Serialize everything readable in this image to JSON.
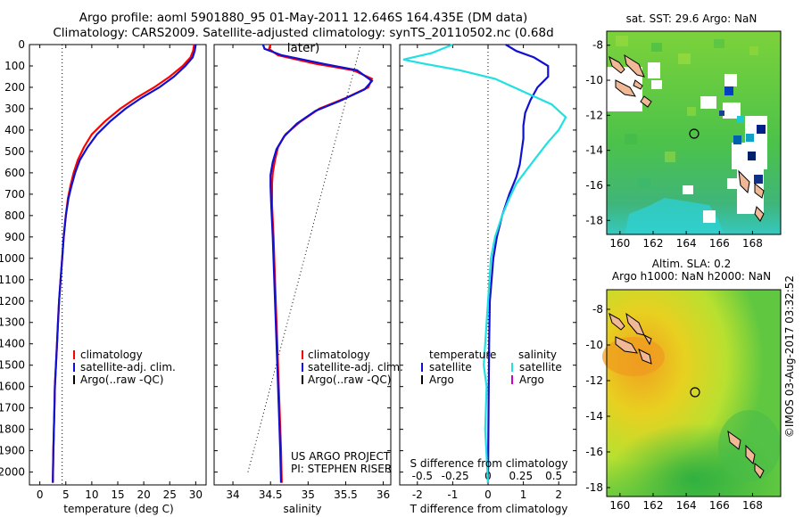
{
  "header": {
    "title_line1": "Argo profile: aoml 5901880_95 01-May-2011 12.646S 164.435E (DM data)",
    "title_line2": "Climatology: CARS2009. Satellite-adjusted climatology: synTS_20110502.nc (0.68d later)"
  },
  "colors": {
    "climatology": "#ff0000",
    "satellite": "#1010d0",
    "satellite_salinity": "#20e0e0",
    "argo": "#000000",
    "argo_salinity": "#cc00cc"
  },
  "project": {
    "line1": "US ARGO PROJECT",
    "line2": "PI: STEPHEN RISER"
  },
  "timestamp": "©IMOS 03-Aug-2017 03:32:52",
  "chart_data": [
    {
      "type": "line",
      "xlabel": "temperature (deg C)",
      "ylabel": "",
      "xlim": [
        -2,
        32
      ],
      "ylim": [
        2060,
        0
      ],
      "xticks": [
        0,
        5,
        10,
        15,
        20,
        25,
        30
      ],
      "yticks": [
        0,
        100,
        200,
        300,
        400,
        500,
        600,
        700,
        800,
        900,
        1000,
        1100,
        1200,
        1300,
        1400,
        1500,
        1600,
        1700,
        1800,
        1900,
        2000
      ],
      "reference_x": 4.3,
      "legend": [
        "climatology",
        "satellite-adj. clim.",
        "Argo(..raw -QC)"
      ],
      "series": [
        {
          "name": "climatology",
          "points": [
            [
              29.7,
              0
            ],
            [
              29.5,
              30
            ],
            [
              29.0,
              60
            ],
            [
              27.5,
              100
            ],
            [
              25.0,
              150
            ],
            [
              22.0,
              200
            ],
            [
              18.5,
              250
            ],
            [
              15.5,
              300
            ],
            [
              12.5,
              360
            ],
            [
              10.0,
              420
            ],
            [
              8.5,
              480
            ],
            [
              7.3,
              540
            ],
            [
              6.5,
              600
            ],
            [
              5.9,
              660
            ],
            [
              5.4,
              720
            ],
            [
              5.0,
              800
            ],
            [
              4.6,
              900
            ],
            [
              4.3,
              1000
            ],
            [
              4.0,
              1100
            ],
            [
              3.7,
              1200
            ],
            [
              3.5,
              1300
            ],
            [
              3.3,
              1400
            ],
            [
              3.1,
              1500
            ],
            [
              2.9,
              1600
            ],
            [
              2.8,
              1700
            ],
            [
              2.7,
              1800
            ],
            [
              2.6,
              1900
            ],
            [
              2.5,
              2050
            ]
          ]
        },
        {
          "name": "satellite-adj. clim.",
          "points": [
            [
              30.0,
              0
            ],
            [
              29.8,
              30
            ],
            [
              29.4,
              60
            ],
            [
              28.0,
              100
            ],
            [
              25.8,
              150
            ],
            [
              23.0,
              200
            ],
            [
              19.5,
              250
            ],
            [
              16.5,
              300
            ],
            [
              13.5,
              360
            ],
            [
              11.0,
              420
            ],
            [
              9.2,
              480
            ],
            [
              7.7,
              540
            ],
            [
              6.8,
              600
            ],
            [
              6.1,
              660
            ],
            [
              5.5,
              720
            ],
            [
              5.0,
              800
            ],
            [
              4.6,
              900
            ],
            [
              4.3,
              1000
            ],
            [
              4.0,
              1100
            ],
            [
              3.7,
              1200
            ],
            [
              3.5,
              1300
            ],
            [
              3.3,
              1400
            ],
            [
              3.1,
              1500
            ],
            [
              2.9,
              1600
            ],
            [
              2.8,
              1700
            ],
            [
              2.7,
              1800
            ],
            [
              2.6,
              1900
            ],
            [
              2.5,
              2050
            ]
          ]
        }
      ]
    },
    {
      "type": "line",
      "xlabel": "salinity",
      "xlim": [
        33.75,
        36.1
      ],
      "ylim": [
        2060,
        0
      ],
      "xticks": [
        34,
        34.5,
        35,
        35.5,
        36
      ],
      "legend": [
        "climatology",
        "satellite-adj. clim.",
        "Argo(..raw -QC)"
      ],
      "reference_line": [
        [
          34.2,
          2000
        ],
        [
          35.7,
          0
        ]
      ],
      "series": [
        {
          "name": "climatology",
          "points": [
            [
              34.5,
              0
            ],
            [
              34.48,
              20
            ],
            [
              34.6,
              50
            ],
            [
              35.1,
              90
            ],
            [
              35.6,
              120
            ],
            [
              35.85,
              160
            ],
            [
              35.8,
              200
            ],
            [
              35.5,
              250
            ],
            [
              35.15,
              300
            ],
            [
              34.9,
              360
            ],
            [
              34.7,
              420
            ],
            [
              34.6,
              480
            ],
            [
              34.56,
              540
            ],
            [
              34.53,
              600
            ],
            [
              34.52,
              650
            ],
            [
              34.52,
              750
            ],
            [
              34.54,
              900
            ],
            [
              34.56,
              1100
            ],
            [
              34.58,
              1300
            ],
            [
              34.6,
              1500
            ],
            [
              34.62,
              1700
            ],
            [
              34.64,
              1900
            ],
            [
              34.65,
              2050
            ]
          ]
        },
        {
          "name": "satellite-adj. clim.",
          "points": [
            [
              34.4,
              0
            ],
            [
              34.42,
              20
            ],
            [
              34.65,
              50
            ],
            [
              35.2,
              90
            ],
            [
              35.65,
              120
            ],
            [
              35.85,
              170
            ],
            [
              35.75,
              210
            ],
            [
              35.45,
              260
            ],
            [
              35.1,
              310
            ],
            [
              34.85,
              370
            ],
            [
              34.68,
              430
            ],
            [
              34.58,
              490
            ],
            [
              34.53,
              550
            ],
            [
              34.5,
              610
            ],
            [
              34.5,
              660
            ],
            [
              34.51,
              750
            ],
            [
              34.53,
              900
            ],
            [
              34.55,
              1100
            ],
            [
              34.57,
              1300
            ],
            [
              34.59,
              1500
            ],
            [
              34.61,
              1700
            ],
            [
              34.63,
              1900
            ],
            [
              34.64,
              2050
            ]
          ]
        }
      ]
    },
    {
      "type": "line",
      "xlabel": "T difference from climatology",
      "xlabel_top": "S difference from climatology",
      "xlim": [
        -2.5,
        2.5
      ],
      "ylim": [
        2060,
        0
      ],
      "xticks": [
        -2,
        -1,
        0,
        1,
        2
      ],
      "xticks_top": [
        "-0.5",
        "-0.25",
        "0",
        "0.25",
        "0.5"
      ],
      "legend_groups": [
        {
          "title": "temperature",
          "items": [
            "satellite",
            "Argo"
          ]
        },
        {
          "title": "salinity",
          "items": [
            "satellite",
            "Argo"
          ]
        }
      ],
      "series": [
        {
          "name": "temperature satellite",
          "points": [
            [
              0.5,
              0
            ],
            [
              0.8,
              30
            ],
            [
              1.3,
              60
            ],
            [
              1.7,
              100
            ],
            [
              1.7,
              150
            ],
            [
              1.4,
              200
            ],
            [
              1.2,
              260
            ],
            [
              1.05,
              320
            ],
            [
              1.0,
              380
            ],
            [
              1.0,
              440
            ],
            [
              0.95,
              500
            ],
            [
              0.9,
              560
            ],
            [
              0.8,
              620
            ],
            [
              0.6,
              700
            ],
            [
              0.4,
              800
            ],
            [
              0.25,
              900
            ],
            [
              0.15,
              1000
            ],
            [
              0.1,
              1100
            ],
            [
              0.05,
              1200
            ],
            [
              0.03,
              1400
            ],
            [
              0.02,
              1600
            ],
            [
              0.01,
              1800
            ],
            [
              0.0,
              2050
            ]
          ]
        },
        {
          "name": "salinity satellite",
          "points": [
            [
              -0.25,
              0
            ],
            [
              -0.4,
              40
            ],
            [
              -0.6,
              70
            ],
            [
              -0.45,
              90
            ],
            [
              -0.2,
              120
            ],
            [
              0.05,
              160
            ],
            [
              0.25,
              220
            ],
            [
              0.45,
              280
            ],
            [
              0.55,
              340
            ],
            [
              0.5,
              400
            ],
            [
              0.42,
              460
            ],
            [
              0.35,
              520
            ],
            [
              0.28,
              580
            ],
            [
              0.2,
              650
            ],
            [
              0.15,
              720
            ],
            [
              0.1,
              800
            ],
            [
              0.05,
              900
            ],
            [
              0.02,
              1000
            ],
            [
              0.0,
              1200
            ],
            [
              -0.02,
              1400
            ],
            [
              -0.03,
              1500
            ],
            [
              -0.01,
              1600
            ],
            [
              -0.02,
              1800
            ],
            [
              0.0,
              2050
            ]
          ]
        }
      ]
    }
  ],
  "maps": [
    {
      "title": "sat. SST: 29.6  Argo: NaN",
      "xticks": [
        "160",
        "162",
        "164",
        "166",
        "168"
      ],
      "yticks": [
        "-8",
        "-10",
        "-12",
        "-14",
        "-16",
        "-18"
      ]
    },
    {
      "title_line1": "Altim. SLA: 0.2",
      "title_line2": "Argo h1000: NaN  h2000: NaN",
      "xticks": [
        "160",
        "162",
        "164",
        "166",
        "168"
      ],
      "yticks": [
        "-8",
        "-10",
        "-12",
        "-14",
        "-16",
        "-18"
      ]
    }
  ]
}
